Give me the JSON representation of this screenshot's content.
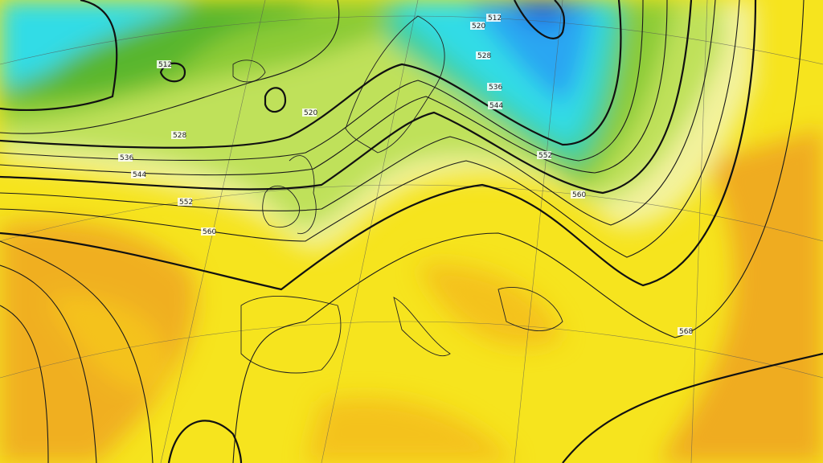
{
  "map": {
    "type": "500 hPa geopotential height",
    "colors": {
      "deep_blue": "#1a5fe0",
      "blue": "#2aa6f2",
      "cyan": "#33dce6",
      "teal": "#3fcf9a",
      "dark_green": "#58b62e",
      "green": "#8bcb36",
      "light_green": "#bfe15a",
      "pale_yellow": "#f3f29c",
      "yellow": "#f6e41e",
      "gold": "#f4c21a",
      "orange": "#ee9e22"
    },
    "contour_labels": [
      "512",
      "520",
      "528",
      "536",
      "544",
      "552",
      "560",
      "568",
      "512",
      "520",
      "528",
      "536",
      "544",
      "552",
      "560"
    ]
  }
}
